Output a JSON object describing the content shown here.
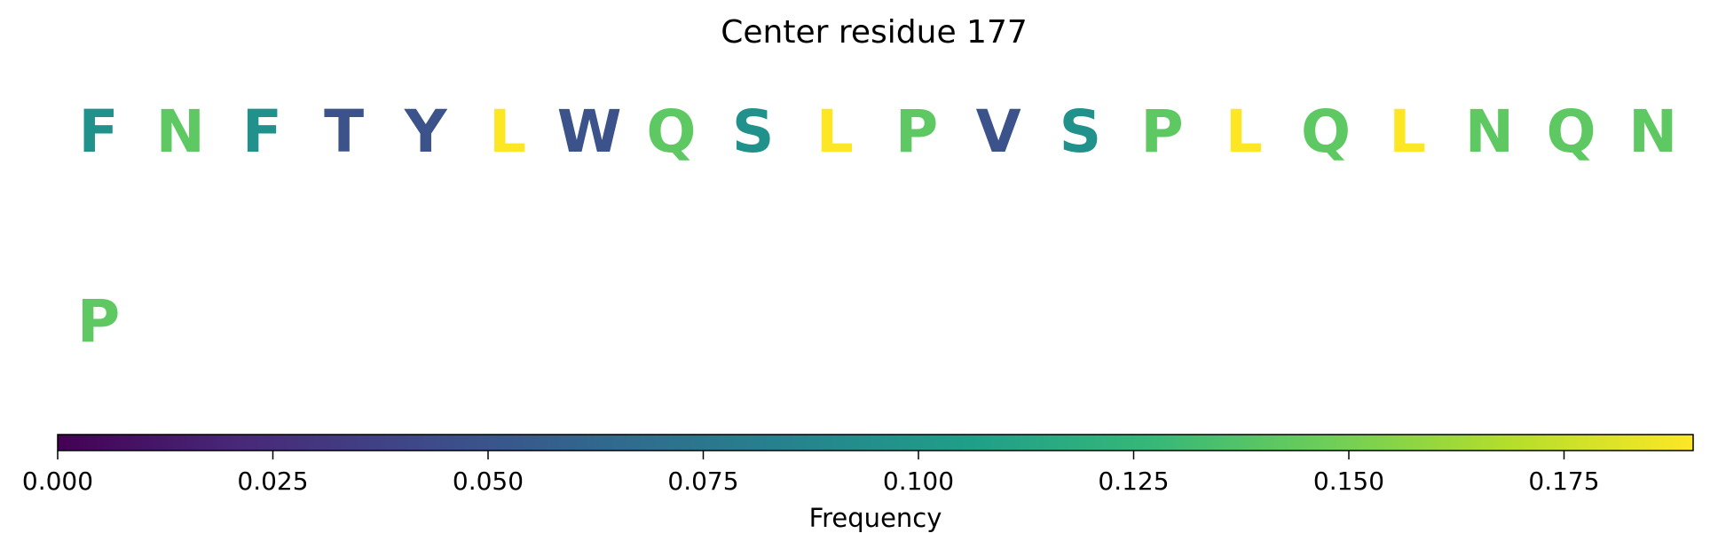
{
  "chart_data": {
    "type": "heatmap",
    "title": "Center residue 177",
    "residues": [
      {
        "letter": "F",
        "color": "#21918c"
      },
      {
        "letter": "N",
        "color": "#5ec962"
      },
      {
        "letter": "F",
        "color": "#21918c"
      },
      {
        "letter": "T",
        "color": "#3b528b"
      },
      {
        "letter": "Y",
        "color": "#3b528b"
      },
      {
        "letter": "L",
        "color": "#fde725"
      },
      {
        "letter": "W",
        "color": "#3b528b"
      },
      {
        "letter": "Q",
        "color": "#5ec962"
      },
      {
        "letter": "S",
        "color": "#21918c"
      },
      {
        "letter": "L",
        "color": "#fde725"
      },
      {
        "letter": "P",
        "color": "#5ec962"
      },
      {
        "letter": "V",
        "color": "#3b528b"
      },
      {
        "letter": "S",
        "color": "#21918c"
      },
      {
        "letter": "P",
        "color": "#5ec962"
      },
      {
        "letter": "L",
        "color": "#fde725"
      },
      {
        "letter": "Q",
        "color": "#5ec962"
      },
      {
        "letter": "L",
        "color": "#fde725"
      },
      {
        "letter": "N",
        "color": "#5ec962"
      },
      {
        "letter": "Q",
        "color": "#5ec962"
      },
      {
        "letter": "N",
        "color": "#5ec962"
      },
      {
        "letter": "P",
        "color": "#5ec962"
      }
    ],
    "colorbar": {
      "label": "Frequency",
      "colormap": "viridis",
      "range": [
        0,
        0.19
      ],
      "ticks": [
        0.0,
        0.025,
        0.05,
        0.075,
        0.1,
        0.125,
        0.15,
        0.175
      ],
      "tick_labels": [
        "0.000",
        "0.025",
        "0.050",
        "0.075",
        "0.100",
        "0.125",
        "0.150",
        "0.175"
      ]
    }
  }
}
